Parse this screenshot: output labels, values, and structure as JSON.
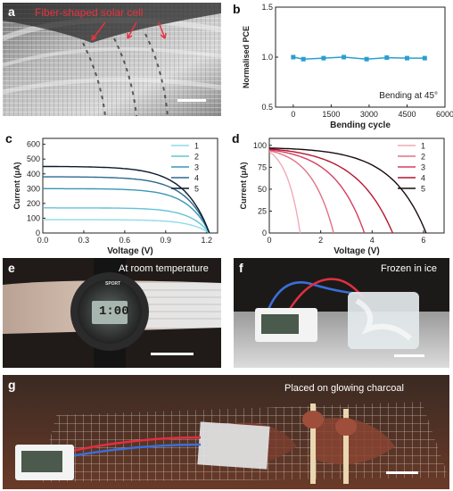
{
  "panels": {
    "a": {
      "label": "a",
      "caption": "Fiber-shaped solar cell"
    },
    "b": {
      "label": "b"
    },
    "c": {
      "label": "c"
    },
    "d": {
      "label": "d"
    },
    "e": {
      "label": "e",
      "caption": "At room temperature",
      "watch_brand": "SPORT",
      "watch_time": "1:00"
    },
    "f": {
      "label": "f",
      "caption": "Frozen in ice"
    },
    "g": {
      "label": "g",
      "caption": "Placed on glowing charcoal"
    }
  },
  "colors": {
    "caption_red": "#e8333f",
    "panel_b_series": "#2a9fd0",
    "panel_c_series": [
      "#8fdbe6",
      "#63c3d8",
      "#3a96b7",
      "#2c6a8e",
      "#0a1a2e"
    ],
    "panel_d_series": [
      "#f2a9b8",
      "#e27086",
      "#d63e5e",
      "#b5172f",
      "#1a0a10"
    ],
    "wire_red": "#e03040",
    "wire_blue": "#3a6fd8"
  },
  "chart_data": [
    {
      "panel": "b",
      "type": "line",
      "x": [
        0,
        400,
        1200,
        2000,
        2900,
        3700,
        4500,
        5200
      ],
      "series": [
        {
          "values": [
            1.0,
            0.98,
            0.99,
            1.0,
            0.98,
            0.995,
            0.99,
            0.99
          ]
        }
      ],
      "xlabel": "Bending cycle",
      "ylabel": "Normalised PCE",
      "xticks": [
        0,
        1500,
        3000,
        4500,
        6000
      ],
      "yticks": [
        0.5,
        1.0,
        1.5
      ],
      "xlim": [
        -700,
        6000
      ],
      "ylim": [
        0.5,
        1.5
      ],
      "annotation": "Bending at 45°",
      "marker": "square"
    },
    {
      "panel": "c",
      "type": "line",
      "xlabel": "Voltage (V)",
      "ylabel": "Current (μA)",
      "xticks": [
        0,
        0.3,
        0.6,
        0.9,
        1.2
      ],
      "yticks": [
        0,
        100,
        200,
        300,
        400,
        500,
        600
      ],
      "xlim": [
        0,
        1.28
      ],
      "ylim": [
        0,
        640
      ],
      "legend": "top-right",
      "series": [
        {
          "name": "1",
          "isc": 90,
          "voc": 1.22
        },
        {
          "name": "2",
          "isc": 170,
          "voc": 1.22
        },
        {
          "name": "3",
          "isc": 300,
          "voc": 1.22
        },
        {
          "name": "4",
          "isc": 380,
          "voc": 1.22
        },
        {
          "name": "5",
          "isc": 450,
          "voc": 1.22
        }
      ]
    },
    {
      "panel": "d",
      "type": "line",
      "xlabel": "Voltage (V)",
      "ylabel": "Current (μA)",
      "xticks": [
        0,
        2,
        4,
        6
      ],
      "yticks": [
        0,
        25,
        50,
        75,
        100
      ],
      "xlim": [
        0,
        6.8
      ],
      "ylim": [
        0,
        108
      ],
      "legend": "top-right",
      "series": [
        {
          "name": "1",
          "isc": 93,
          "voc": 1.2
        },
        {
          "name": "2",
          "isc": 94,
          "voc": 2.5
        },
        {
          "name": "3",
          "isc": 95,
          "voc": 3.7
        },
        {
          "name": "4",
          "isc": 96,
          "voc": 4.8
        },
        {
          "name": "5",
          "isc": 97,
          "voc": 6.1
        }
      ]
    }
  ]
}
